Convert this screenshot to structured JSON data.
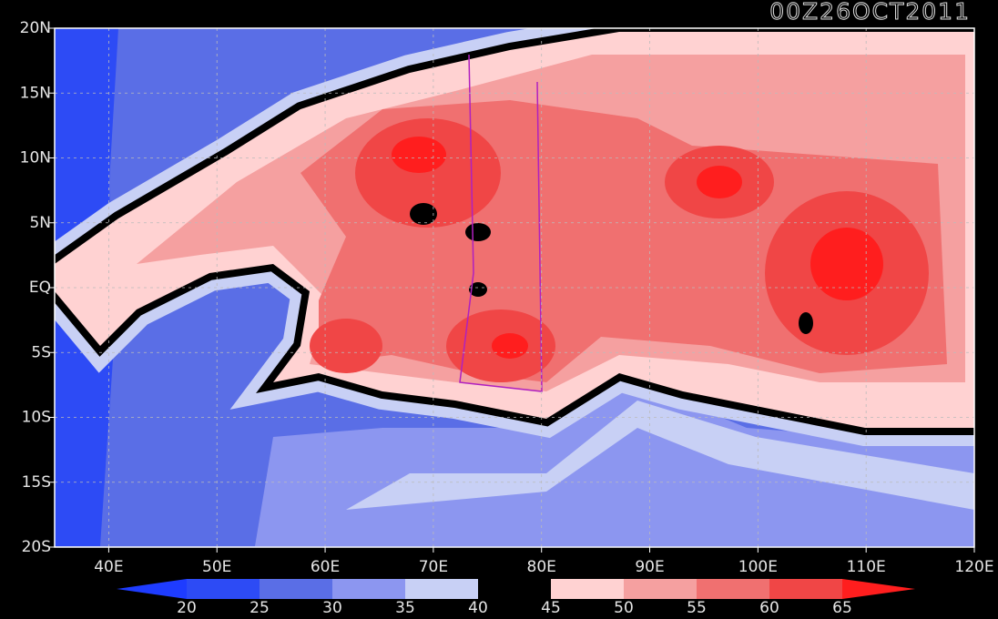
{
  "title": "00Z26OCT2011",
  "map": {
    "lon_ticks": [
      {
        "value": 40,
        "label": "40E"
      },
      {
        "value": 50,
        "label": "50E"
      },
      {
        "value": 60,
        "label": "60E"
      },
      {
        "value": 70,
        "label": "70E"
      },
      {
        "value": 80,
        "label": "80E"
      },
      {
        "value": 90,
        "label": "90E"
      },
      {
        "value": 100,
        "label": "100E"
      },
      {
        "value": 110,
        "label": "110E"
      },
      {
        "value": 120,
        "label": "120E"
      }
    ],
    "lat_ticks": [
      {
        "value": 20,
        "label": "20N"
      },
      {
        "value": 15,
        "label": "15N"
      },
      {
        "value": 10,
        "label": "10N"
      },
      {
        "value": 5,
        "label": "5N"
      },
      {
        "value": 0,
        "label": "EQ"
      },
      {
        "value": -5,
        "label": "5S"
      },
      {
        "value": -10,
        "label": "10S"
      },
      {
        "value": -15,
        "label": "15S"
      },
      {
        "value": -20,
        "label": "20S"
      }
    ],
    "lonlim": [
      35,
      120
    ],
    "latlim": [
      -20,
      20
    ],
    "grid": true
  },
  "colorbar": {
    "levels": [
      20,
      25,
      30,
      35,
      40,
      45,
      50,
      55,
      60,
      65
    ],
    "colors": [
      "#1e3cff",
      "#2d4bf5",
      "#5a6ee6",
      "#8c96f0",
      "#c8d0f5",
      "#000000",
      "#ffd2d2",
      "#f5a0a0",
      "#f07070",
      "#f04646",
      "#ff1e1e"
    ]
  }
}
